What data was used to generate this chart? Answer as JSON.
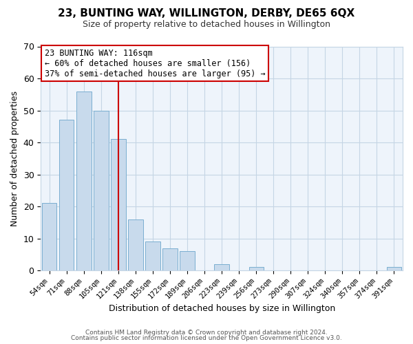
{
  "title": "23, BUNTING WAY, WILLINGTON, DERBY, DE65 6QX",
  "subtitle": "Size of property relative to detached houses in Willington",
  "xlabel": "Distribution of detached houses by size in Willington",
  "ylabel": "Number of detached properties",
  "bar_color": "#c8daec",
  "bar_edgecolor": "#7aaed0",
  "categories": [
    "54sqm",
    "71sqm",
    "88sqm",
    "105sqm",
    "121sqm",
    "138sqm",
    "155sqm",
    "172sqm",
    "189sqm",
    "206sqm",
    "223sqm",
    "239sqm",
    "256sqm",
    "273sqm",
    "290sqm",
    "307sqm",
    "324sqm",
    "340sqm",
    "357sqm",
    "374sqm",
    "391sqm"
  ],
  "values": [
    21,
    47,
    56,
    50,
    41,
    16,
    9,
    7,
    6,
    0,
    2,
    0,
    1,
    0,
    0,
    0,
    0,
    0,
    0,
    0,
    1
  ],
  "vline_x": 4,
  "vline_color": "#cc0000",
  "ylim": [
    0,
    70
  ],
  "yticks": [
    0,
    10,
    20,
    30,
    40,
    50,
    60,
    70
  ],
  "annotation_title": "23 BUNTING WAY: 116sqm",
  "annotation_line1": "← 60% of detached houses are smaller (156)",
  "annotation_line2": "37% of semi-detached houses are larger (95) →",
  "annotation_box_facecolor": "#ffffff",
  "annotation_box_edgecolor": "#cc0000",
  "footer1": "Contains HM Land Registry data © Crown copyright and database right 2024.",
  "footer2": "Contains public sector information licensed under the Open Government Licence v3.0.",
  "background_color": "#ffffff",
  "grid_color": "#c5d5e5",
  "plot_bg_color": "#eef4fb"
}
